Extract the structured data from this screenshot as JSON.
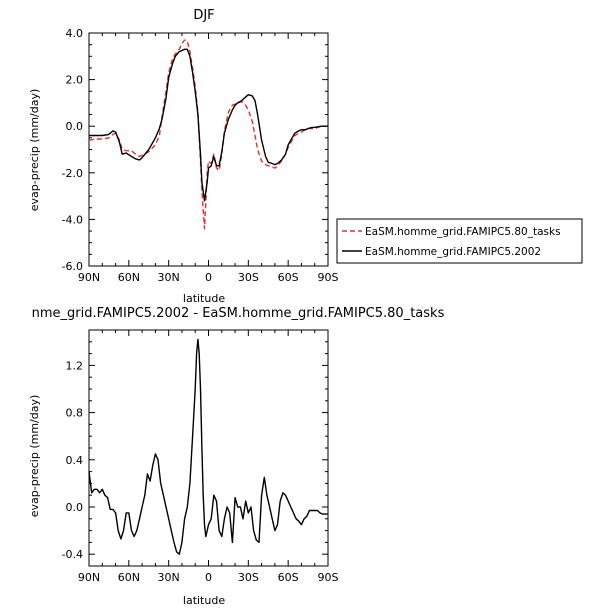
{
  "chart_data": [
    {
      "type": "line",
      "title": "DJF",
      "xlabel": "latitude",
      "ylabel": "evap-precip (mm/day)",
      "xlim": [
        90,
        -90
      ],
      "ylim": [
        -6,
        4
      ],
      "x_tick_values": [
        90,
        60,
        30,
        0,
        -30,
        -60,
        -90
      ],
      "x_tick_labels": [
        "90N",
        "60N",
        "30N",
        "0",
        "30S",
        "60S",
        "90S"
      ],
      "y_tick_values": [
        -6,
        -4,
        -2,
        0,
        2,
        4
      ],
      "y_tick_labels": [
        "-6.0",
        "-4.0",
        "-2.0",
        "0.0",
        "2.0",
        "4.0"
      ],
      "grid": false,
      "legend_position": "right",
      "series": [
        {
          "name": "EaSM.homme_grid.FAMIPC5.80_tasks",
          "color": "#e03030",
          "dash": "dashed",
          "x": [
            90,
            85,
            80,
            75,
            72,
            70,
            67,
            65,
            62,
            58,
            55,
            52,
            50,
            45,
            40,
            37,
            35,
            32,
            30,
            27,
            25,
            22,
            20,
            18,
            16,
            14,
            12,
            10,
            8,
            6,
            5,
            3,
            1,
            0,
            -2,
            -4,
            -6,
            -8,
            -10,
            -12,
            -15,
            -18,
            -20,
            -22,
            -25,
            -27,
            -30,
            -33,
            -35,
            -37,
            -40,
            -43,
            -45,
            -48,
            -50,
            -52,
            -55,
            -58,
            -60,
            -63,
            -65,
            -68,
            -70,
            -73,
            -75,
            -78,
            -80,
            -85,
            -90
          ],
          "y": [
            -0.6,
            -0.55,
            -0.55,
            -0.5,
            -0.35,
            -0.3,
            -0.6,
            -1.0,
            -1.05,
            -1.05,
            -1.2,
            -1.3,
            -1.25,
            -1.1,
            -0.8,
            -0.4,
            0.4,
            1.5,
            2.3,
            2.9,
            3.1,
            3.3,
            3.55,
            3.7,
            3.65,
            3.2,
            2.5,
            1.7,
            0.6,
            -1.5,
            -2.8,
            -4.4,
            -2.0,
            -1.5,
            -1.6,
            -1.2,
            -1.8,
            -1.9,
            -1.2,
            -0.2,
            0.6,
            0.9,
            0.95,
            1.0,
            1.05,
            1.0,
            0.7,
            0.2,
            -0.4,
            -1.0,
            -1.5,
            -1.65,
            -1.7,
            -1.75,
            -1.8,
            -1.7,
            -1.5,
            -1.2,
            -0.9,
            -0.6,
            -0.4,
            -0.3,
            -0.25,
            -0.15,
            -0.1,
            -0.1,
            -0.1,
            0.0,
            0.0
          ]
        },
        {
          "name": "EaSM.homme_grid.FAMIPC5.2002",
          "color": "#000000",
          "dash": "solid",
          "x": [
            90,
            85,
            80,
            75,
            72,
            70,
            67,
            65,
            62,
            58,
            55,
            52,
            50,
            45,
            40,
            37,
            35,
            32,
            30,
            27,
            25,
            22,
            20,
            18,
            16,
            14,
            12,
            10,
            8,
            6,
            5,
            3,
            1,
            0,
            -2,
            -4,
            -6,
            -8,
            -10,
            -12,
            -15,
            -18,
            -20,
            -22,
            -25,
            -27,
            -30,
            -33,
            -35,
            -37,
            -40,
            -43,
            -45,
            -48,
            -50,
            -52,
            -55,
            -58,
            -60,
            -63,
            -65,
            -68,
            -70,
            -73,
            -75,
            -78,
            -80,
            -85,
            -90
          ],
          "y": [
            -0.4,
            -0.4,
            -0.4,
            -0.35,
            -0.2,
            -0.25,
            -0.7,
            -1.2,
            -1.15,
            -1.3,
            -1.4,
            -1.45,
            -1.35,
            -1.0,
            -0.5,
            -0.1,
            0.3,
            1.2,
            2.1,
            2.7,
            3.0,
            3.2,
            3.25,
            3.3,
            3.3,
            3.0,
            2.3,
            1.5,
            0.5,
            -1.2,
            -2.4,
            -3.2,
            -2.4,
            -1.8,
            -1.7,
            -1.3,
            -1.7,
            -1.7,
            -1.1,
            -0.3,
            0.3,
            0.7,
            0.9,
            1.0,
            1.1,
            1.2,
            1.35,
            1.3,
            1.1,
            0.5,
            -0.6,
            -1.3,
            -1.55,
            -1.6,
            -1.65,
            -1.6,
            -1.45,
            -1.2,
            -0.8,
            -0.5,
            -0.3,
            -0.2,
            -0.15,
            -0.15,
            -0.1,
            -0.05,
            -0.05,
            0.0,
            0.0
          ]
        }
      ]
    },
    {
      "type": "line",
      "title": "nme_grid.FAMIPC5.2002 - EaSM.homme_grid.FAMIPC5.80_tasks",
      "xlabel": "latitude",
      "ylabel": "evap-precip (mm/day)",
      "xlim": [
        90,
        -90
      ],
      "ylim": [
        -0.5,
        1.5
      ],
      "x_tick_values": [
        90,
        60,
        30,
        0,
        -30,
        -60,
        -90
      ],
      "x_tick_labels": [
        "90N",
        "60N",
        "30N",
        "0",
        "30S",
        "60S",
        "90S"
      ],
      "y_tick_values": [
        -0.4,
        0,
        0.4,
        0.8,
        1.2
      ],
      "y_tick_labels": [
        "-0.4",
        "0.0",
        "0.4",
        "0.8",
        "1.2"
      ],
      "grid": false,
      "series": [
        {
          "color": "#000000",
          "dash": "solid",
          "x": [
            90,
            88,
            86,
            84,
            82,
            80,
            78,
            76,
            74,
            72,
            70,
            68,
            66,
            64,
            62,
            60,
            58,
            56,
            54,
            52,
            50,
            48,
            46,
            44,
            42,
            40,
            38,
            36,
            34,
            32,
            30,
            28,
            26,
            24,
            22,
            20,
            18,
            16,
            14,
            12,
            10,
            9,
            8,
            7,
            6,
            5,
            4,
            3,
            2,
            1,
            0,
            -2,
            -4,
            -6,
            -8,
            -10,
            -12,
            -14,
            -16,
            -18,
            -20,
            -22,
            -24,
            -26,
            -28,
            -30,
            -32,
            -34,
            -36,
            -38,
            -40,
            -42,
            -44,
            -46,
            -48,
            -50,
            -52,
            -54,
            -56,
            -58,
            -60,
            -62,
            -64,
            -66,
            -68,
            -70,
            -72,
            -74,
            -76,
            -78,
            -80,
            -82,
            -84,
            -86,
            -88,
            -90
          ],
          "y": [
            0.3,
            0.12,
            0.15,
            0.15,
            0.12,
            0.15,
            0.1,
            0.08,
            -0.02,
            -0.02,
            -0.05,
            -0.2,
            -0.27,
            -0.2,
            -0.05,
            -0.05,
            -0.2,
            -0.25,
            -0.2,
            -0.1,
            0.0,
            0.1,
            0.28,
            0.22,
            0.35,
            0.45,
            0.4,
            0.2,
            0.1,
            0.0,
            -0.1,
            -0.2,
            -0.3,
            -0.38,
            -0.4,
            -0.3,
            -0.1,
            0.0,
            0.2,
            0.6,
            1.0,
            1.3,
            1.42,
            1.3,
            1.0,
            0.5,
            0.1,
            -0.15,
            -0.25,
            -0.2,
            -0.15,
            -0.1,
            0.1,
            0.05,
            -0.2,
            -0.25,
            -0.1,
            0.0,
            -0.05,
            -0.3,
            0.08,
            0.0,
            0.0,
            -0.1,
            0.05,
            -0.05,
            0.0,
            -0.2,
            -0.28,
            -0.3,
            0.1,
            0.25,
            0.1,
            0.0,
            -0.1,
            -0.2,
            -0.15,
            0.05,
            0.12,
            0.1,
            0.05,
            0.0,
            -0.05,
            -0.1,
            -0.12,
            -0.15,
            -0.1,
            -0.08,
            -0.03,
            -0.03,
            -0.03,
            -0.03,
            -0.05,
            -0.06,
            -0.06,
            -0.06
          ]
        }
      ]
    }
  ]
}
